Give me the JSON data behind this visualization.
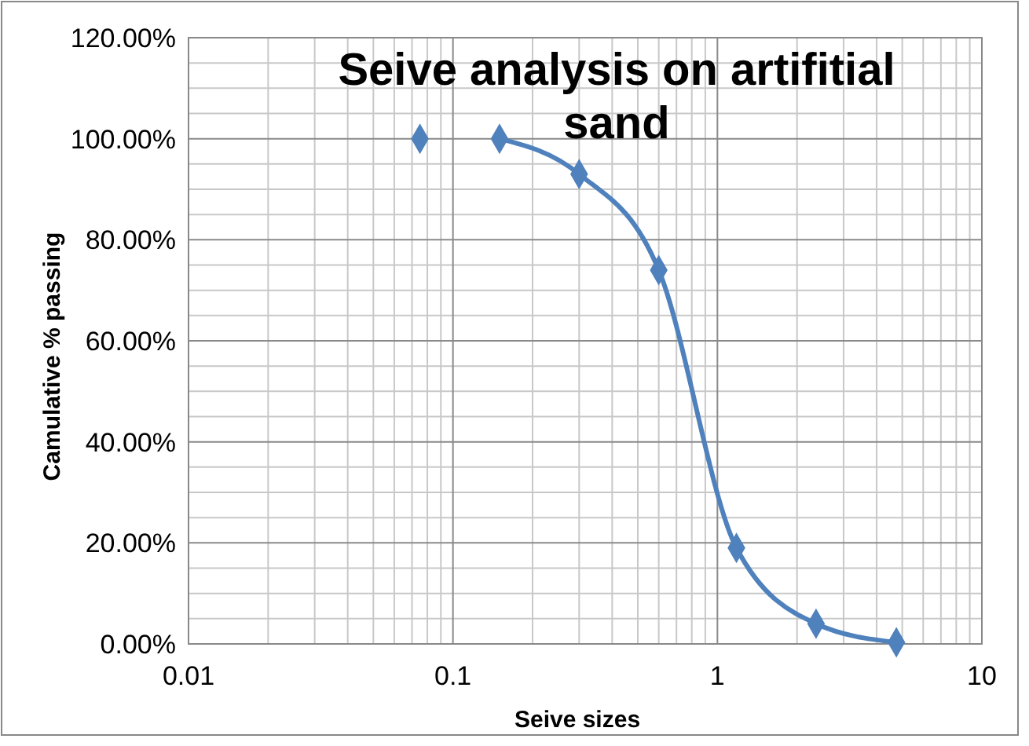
{
  "chart_data": {
    "type": "line",
    "title": "Seive analysis on artifitial sand",
    "xlabel": "Seive sizes",
    "ylabel": "Camulative % passing",
    "log": "x",
    "grid": true,
    "marker": "diamond",
    "line_style": "solid",
    "xlim": [
      0.01,
      10
    ],
    "xticks": [
      0.01,
      0.1,
      1,
      10
    ],
    "ylim": [
      0,
      120
    ],
    "yticks": [
      {
        "value": 0,
        "label": "0.00%"
      },
      {
        "value": 20,
        "label": "20.00%"
      },
      {
        "value": 40,
        "label": "40.00%"
      },
      {
        "value": 60,
        "label": "60.00%"
      },
      {
        "value": 80,
        "label": "80.00%"
      },
      {
        "value": 100,
        "label": "100.00%"
      },
      {
        "value": 120,
        "label": "120.00%"
      }
    ],
    "series": [
      {
        "type": "scatter",
        "color": "#4f81bd",
        "x": [
          0.075
        ],
        "values": [
          100
        ]
      },
      {
        "color": "#4f81bd",
        "x": [
          0.15,
          0.3,
          0.6,
          1.18,
          2.36,
          4.75
        ],
        "values": [
          100,
          93,
          74,
          19,
          4,
          0.3
        ]
      }
    ]
  }
}
